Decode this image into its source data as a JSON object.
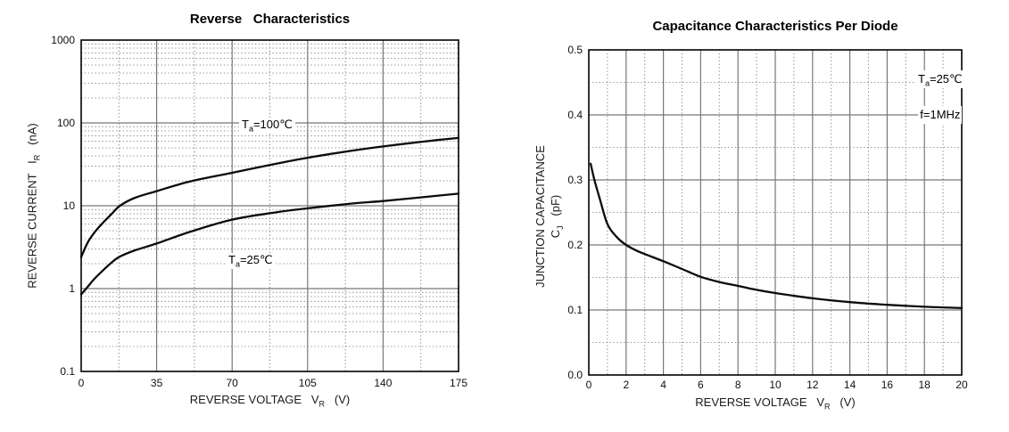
{
  "page": {
    "background": "#ffffff"
  },
  "colors": {
    "frame": "#000000",
    "grid_major": "#787878",
    "grid_minor": "#8f8f8f",
    "curve": "#0b0b0b",
    "text": "#111111"
  },
  "chart_data": [
    {
      "type": "line",
      "title": "Reverse   Characteristics",
      "xlabel": {
        "pre": "REVERSE VOLTAGE   V",
        "sub": "R",
        "post": "   (V)"
      },
      "ylabel": {
        "pre": "REVERSE CURRENT   I",
        "sub": "R",
        "post": "   (nA)"
      },
      "x_scale": "linear",
      "y_scale": "log",
      "xlim": [
        0,
        175
      ],
      "ylim": [
        0.1,
        1000
      ],
      "grid": "major solid gray, minor dotted; x minors at midpoints, y minors at log mantissas 2-9",
      "legend_position": "inline annotations",
      "x_ticks": [
        {
          "v": 0,
          "label": "0"
        },
        {
          "v": 35,
          "label": "35"
        },
        {
          "v": 70,
          "label": "70"
        },
        {
          "v": 105,
          "label": "105"
        },
        {
          "v": 140,
          "label": "140"
        },
        {
          "v": 175,
          "label": "175"
        }
      ],
      "y_ticks": [
        {
          "v": 1000,
          "label": "1000"
        },
        {
          "v": 100,
          "label": "100"
        },
        {
          "v": 10,
          "label": "10"
        },
        {
          "v": 1,
          "label": "1"
        },
        {
          "v": 0.1,
          "label": "0.1"
        }
      ],
      "series": [
        {
          "name": "Ta=100C",
          "annotation": {
            "pre": "T",
            "sub": "a",
            "post": "=100℃"
          },
          "points": [
            [
              0,
              2.4
            ],
            [
              3,
              3.6
            ],
            [
              6,
              4.7
            ],
            [
              10,
              6.2
            ],
            [
              14,
              7.9
            ],
            [
              18,
              10
            ],
            [
              25,
              12.5
            ],
            [
              35,
              15
            ],
            [
              50,
              19.5
            ],
            [
              70,
              25
            ],
            [
              90,
              32
            ],
            [
              105,
              38
            ],
            [
              125,
              46
            ],
            [
              140,
              52
            ],
            [
              160,
              60
            ],
            [
              175,
              66
            ]
          ]
        },
        {
          "name": "Ta=25C",
          "annotation": {
            "pre": "T",
            "sub": "a",
            "post": "=25℃"
          },
          "points": [
            [
              0,
              0.85
            ],
            [
              3,
              1.05
            ],
            [
              6,
              1.3
            ],
            [
              10,
              1.65
            ],
            [
              14,
              2.05
            ],
            [
              17.5,
              2.4
            ],
            [
              25,
              2.9
            ],
            [
              35,
              3.5
            ],
            [
              50,
              4.8
            ],
            [
              70,
              6.8
            ],
            [
              90,
              8.3
            ],
            [
              105,
              9.3
            ],
            [
              125,
              10.6
            ],
            [
              140,
              11.4
            ],
            [
              160,
              12.8
            ],
            [
              175,
              14
            ]
          ]
        }
      ]
    },
    {
      "type": "line",
      "title": "Capacitance Characteristics Per Diode",
      "xlabel": {
        "pre": "REVERSE VOLTAGE   V",
        "sub": "R",
        "post": "   (V)"
      },
      "ylabel_line1": "JUNCTION CAPACITANCE",
      "ylabel_line2": {
        "pre": "C",
        "sub": "J",
        "post": "   (pF)"
      },
      "x_scale": "linear",
      "y_scale": "linear",
      "xlim": [
        0,
        20
      ],
      "ylim": [
        0,
        0.5
      ],
      "grid": "solid gray at even volts and 0.1 steps, dotted at odd volts and 0.05 steps",
      "annotations": [
        {
          "pre": "T",
          "sub": "a",
          "post": "=25℃"
        },
        {
          "pre": "f",
          "sub": "",
          "post": "=1MHz"
        }
      ],
      "x_ticks": [
        {
          "v": 0,
          "label": "0"
        },
        {
          "v": 2,
          "label": "2"
        },
        {
          "v": 4,
          "label": "4"
        },
        {
          "v": 6,
          "label": "6"
        },
        {
          "v": 8,
          "label": "8"
        },
        {
          "v": 10,
          "label": "10"
        },
        {
          "v": 12,
          "label": "12"
        },
        {
          "v": 14,
          "label": "14"
        },
        {
          "v": 16,
          "label": "16"
        },
        {
          "v": 18,
          "label": "18"
        },
        {
          "v": 20,
          "label": "20"
        }
      ],
      "y_ticks": [
        {
          "v": 0.5,
          "label": "0.5"
        },
        {
          "v": 0.4,
          "label": "0.4"
        },
        {
          "v": 0.3,
          "label": "0.3"
        },
        {
          "v": 0.2,
          "label": "0.2"
        },
        {
          "v": 0.1,
          "label": "0.1"
        },
        {
          "v": 0,
          "label": "0.0"
        }
      ],
      "series": [
        {
          "name": "Cj",
          "points": [
            [
              0.1,
              0.325
            ],
            [
              0.3,
              0.3
            ],
            [
              0.6,
              0.27
            ],
            [
              1,
              0.232
            ],
            [
              1.5,
              0.212
            ],
            [
              2,
              0.2
            ],
            [
              2.5,
              0.192
            ],
            [
              3,
              0.186
            ],
            [
              4,
              0.175
            ],
            [
              5,
              0.163
            ],
            [
              6,
              0.151
            ],
            [
              7,
              0.143
            ],
            [
              8,
              0.137
            ],
            [
              9,
              0.131
            ],
            [
              10,
              0.126
            ],
            [
              12,
              0.118
            ],
            [
              14,
              0.112
            ],
            [
              16,
              0.108
            ],
            [
              18,
              0.105
            ],
            [
              20,
              0.103
            ]
          ]
        }
      ]
    }
  ]
}
